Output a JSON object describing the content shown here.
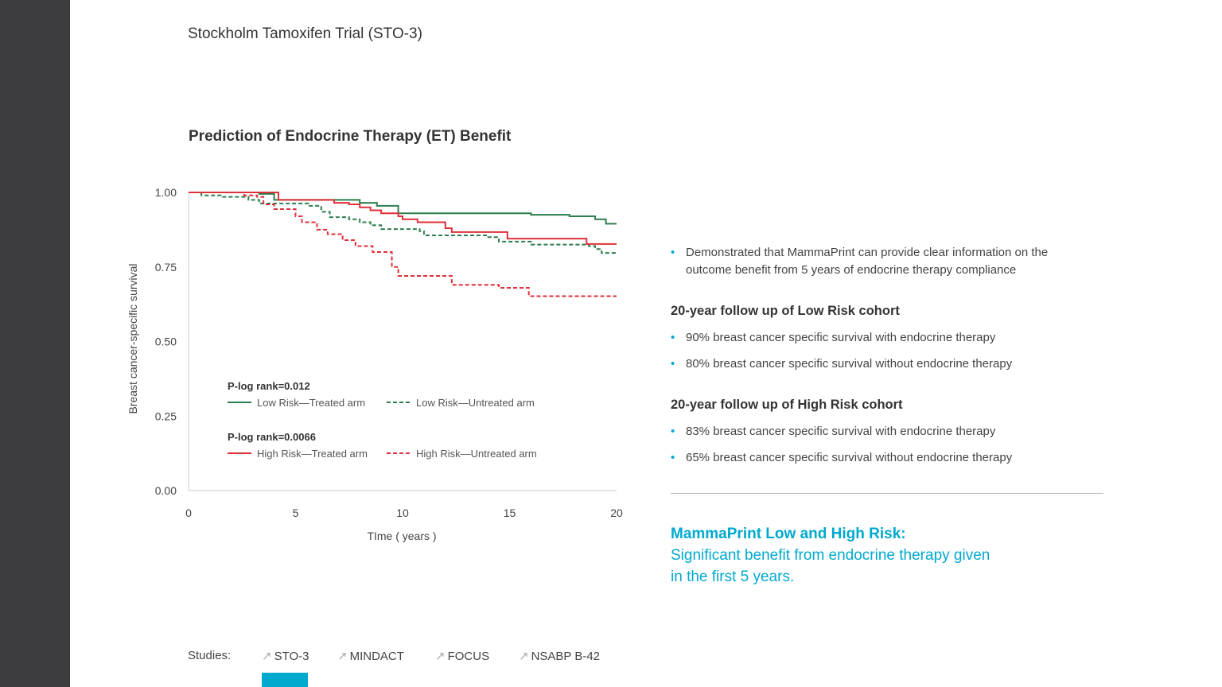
{
  "page": {
    "title": "Stockholm Tamoxifen Trial (STO-3)",
    "accent": "#00a9ce"
  },
  "chart_data": {
    "type": "line",
    "step": true,
    "title": "Prediction of Endocrine Therapy (ET) Benefit",
    "xlabel": "TIme ( years )",
    "ylabel": "Breast cancer-specific survival",
    "xlim": [
      0,
      20
    ],
    "ylim": [
      0,
      1
    ],
    "xticks": [
      "0",
      "5",
      "10",
      "15",
      "20"
    ],
    "yticks": [
      "0.00",
      "0.25",
      "0.50",
      "0.75",
      "1.00"
    ],
    "legend": {
      "low_p": "P-log rank=0.012",
      "high_p": "P-log rank=0.0066"
    },
    "series": [
      {
        "name": "Low Risk—Treated arm",
        "color": "#2e7d4f",
        "dashed": false,
        "x": [
          0,
          3.3,
          4.0,
          8.0,
          8.8,
          9.8,
          16.0,
          17.8,
          19.0,
          19.5,
          20
        ],
        "y": [
          1,
          0.995,
          0.975,
          0.965,
          0.955,
          0.93,
          0.925,
          0.92,
          0.91,
          0.895,
          0.895
        ]
      },
      {
        "name": "Low Risk—Untreated arm",
        "color": "#2e7d4f",
        "dashed": true,
        "x": [
          0,
          0.6,
          1.5,
          2.8,
          3.3,
          5.6,
          6.2,
          6.6,
          7.5,
          8.0,
          8.5,
          9.0,
          10.8,
          11.0,
          14.0,
          14.5,
          16.0,
          18.7,
          19.0,
          19.3,
          20
        ],
        "y": [
          1,
          0.99,
          0.985,
          0.975,
          0.963,
          0.955,
          0.935,
          0.917,
          0.91,
          0.9,
          0.89,
          0.877,
          0.87,
          0.856,
          0.85,
          0.835,
          0.825,
          0.82,
          0.81,
          0.797,
          0.797
        ]
      },
      {
        "name": "High Risk—Treated arm",
        "color": "#e0303a",
        "dashed": false,
        "x": [
          0,
          3.5,
          4.2,
          6.8,
          7.5,
          8.0,
          8.5,
          9.0,
          9.8,
          10.0,
          10.7,
          12.0,
          12.3,
          14.9,
          18.6,
          20
        ],
        "y": [
          1,
          1,
          0.975,
          0.965,
          0.96,
          0.95,
          0.94,
          0.93,
          0.92,
          0.91,
          0.9,
          0.88,
          0.867,
          0.845,
          0.827,
          0.827
        ]
      },
      {
        "name": "High Risk—Untreated arm",
        "color": "#e0303a",
        "dashed": true,
        "x": [
          0,
          2.6,
          3.2,
          3.5,
          4.0,
          5.0,
          5.3,
          6.0,
          6.5,
          7.2,
          7.8,
          8.6,
          9.5,
          9.8,
          12.3,
          14.5,
          15.9,
          20
        ],
        "y": [
          1,
          0.99,
          0.985,
          0.96,
          0.944,
          0.92,
          0.9,
          0.875,
          0.86,
          0.84,
          0.82,
          0.8,
          0.75,
          0.72,
          0.69,
          0.68,
          0.652,
          0.652
        ]
      }
    ]
  },
  "right": {
    "bullet1": "Demonstrated that MammaPrint can provide clear information on the",
    "bullet1b": "outcome benefit from 5 years of endocrine therapy compliance",
    "low_heading": "20-year follow up of Low Risk cohort",
    "low1": "90% breast cancer specific survival with endocrine therapy",
    "low2": "80% breast cancer specific survival without endocrine therapy",
    "high_heading": "20-year follow up of High Risk cohort",
    "high1": "83% breast cancer specific survival with endocrine therapy",
    "high2": "65% breast cancer specific survival without endocrine therapy",
    "concl_title": "MammaPrint Low and High Risk:",
    "concl1": "Significant benefit from endocrine therapy given",
    "concl2": "in the first 5 years."
  },
  "nav": {
    "label": "Studies:",
    "items": [
      "STO-3",
      "MINDACT",
      "FOCUS",
      "NSABP B-42"
    ],
    "active": "STO-3",
    "icon": "arrow-up-right-icon"
  }
}
